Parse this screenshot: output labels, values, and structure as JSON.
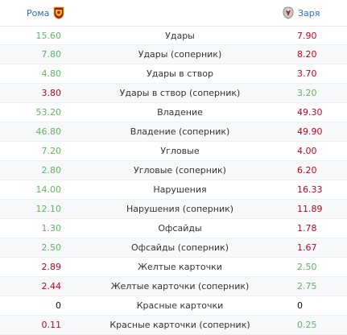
{
  "header": {
    "home_team": "Рома",
    "away_team": "Заря",
    "home_logo_icon": "roma-crest-icon",
    "away_logo_icon": "zorya-crest-icon"
  },
  "colors": {
    "better": "#5cb85c",
    "worse": "#c9001a",
    "neutral": "#111111",
    "team_link": "#2a6fb5"
  },
  "stats": [
    {
      "label": "Удары",
      "home": "15.60",
      "away": "7.90",
      "home_color": "green",
      "away_color": "red"
    },
    {
      "label": "Удары (соперник)",
      "home": "7.80",
      "away": "8.20",
      "home_color": "green",
      "away_color": "red"
    },
    {
      "label": "Удары в створ",
      "home": "4.80",
      "away": "3.70",
      "home_color": "green",
      "away_color": "red"
    },
    {
      "label": "Удары в створ (соперник)",
      "home": "3.80",
      "away": "3.20",
      "home_color": "red",
      "away_color": "green"
    },
    {
      "label": "Владение",
      "home": "53.20",
      "away": "49.30",
      "home_color": "green",
      "away_color": "red"
    },
    {
      "label": "Владение (соперник)",
      "home": "46.80",
      "away": "49.90",
      "home_color": "green",
      "away_color": "red"
    },
    {
      "label": "Угловые",
      "home": "7.20",
      "away": "4.00",
      "home_color": "green",
      "away_color": "red"
    },
    {
      "label": "Угловые (соперник)",
      "home": "2.80",
      "away": "6.20",
      "home_color": "green",
      "away_color": "red"
    },
    {
      "label": "Нарушения",
      "home": "14.00",
      "away": "16.33",
      "home_color": "green",
      "away_color": "red"
    },
    {
      "label": "Нарушения (соперник)",
      "home": "12.10",
      "away": "11.89",
      "home_color": "green",
      "away_color": "red"
    },
    {
      "label": "Офсайды",
      "home": "1.30",
      "away": "1.78",
      "home_color": "green",
      "away_color": "red"
    },
    {
      "label": "Офсайды (соперник)",
      "home": "2.50",
      "away": "1.67",
      "home_color": "green",
      "away_color": "red"
    },
    {
      "label": "Желтые карточки",
      "home": "2.89",
      "away": "2.50",
      "home_color": "red",
      "away_color": "green"
    },
    {
      "label": "Желтые карточки (соперник)",
      "home": "2.44",
      "away": "2.75",
      "home_color": "red",
      "away_color": "green"
    },
    {
      "label": "Красные карточки",
      "home": "0",
      "away": "0",
      "home_color": "black",
      "away_color": "black"
    },
    {
      "label": "Красные карточки (соперник)",
      "home": "0.11",
      "away": "0.25",
      "home_color": "red",
      "away_color": "green"
    }
  ]
}
